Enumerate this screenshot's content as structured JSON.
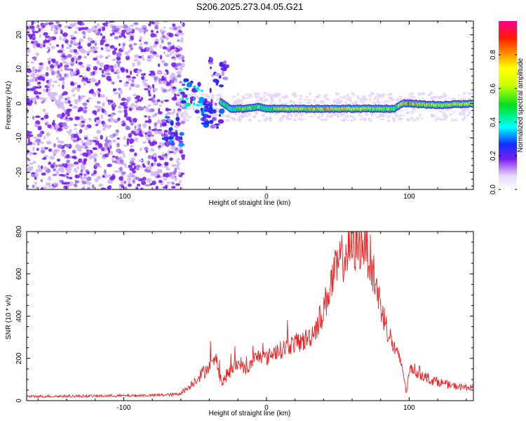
{
  "title": "S206.2025.273.04.05.G21",
  "colors": {
    "noise_dark": "#7a1ff0",
    "noise_light": "#d2b8f8",
    "snr_line": "#ee2222",
    "axis": "#000000"
  },
  "chart_data": [
    {
      "type": "heatmap",
      "title": "S206.2025.273.04.05.G21",
      "xlabel": "Height of straight line (km)",
      "ylabel": "Frequency (Hz)",
      "xlim": [
        -168,
        145
      ],
      "ylim": [
        -25,
        24
      ],
      "xticks": [
        -100,
        0,
        100
      ],
      "yticks": [
        -20,
        -10,
        0,
        10,
        20
      ],
      "colorbar": {
        "label": "Normalized spectral amplitude",
        "range": [
          0,
          1
        ],
        "ticks": [
          0.0,
          0.2,
          0.4,
          0.6,
          0.8
        ]
      },
      "features": {
        "noise_region_x": [
          -168,
          -62
        ],
        "transition_blobs": [
          {
            "x": -54,
            "y": 3,
            "amp": 0.35
          },
          {
            "x": -45,
            "y": 0,
            "amp": 0.3
          },
          {
            "x": -38,
            "y": -3,
            "amp": 0.25
          },
          {
            "x": -34,
            "y": 9,
            "amp": 0.2
          },
          {
            "x": -66,
            "y": -8,
            "amp": 0.25
          }
        ],
        "ridge": {
          "x": [
            -32,
            -25,
            -15,
            -5,
            0,
            10,
            40,
            60,
            90,
            95,
            100,
            120,
            145
          ],
          "f": [
            0.5,
            -1.5,
            -1.5,
            -1.0,
            -1.5,
            -1.5,
            -1.5,
            -1.5,
            -1.5,
            0.0,
            0.0,
            -0.5,
            0.0
          ],
          "amp": [
            0.6,
            0.4,
            0.7,
            0.6,
            0.5,
            0.7,
            0.8,
            0.7,
            0.6,
            0.7,
            0.85,
            0.7,
            0.7
          ]
        }
      }
    },
    {
      "type": "line",
      "xlabel": "Height of straight line (km)",
      "ylabel": "SNR (10 * v/v)",
      "xlim": [
        -168,
        145
      ],
      "ylim": [
        0,
        800
      ],
      "xticks": [
        -100,
        0,
        100
      ],
      "yticks": [
        0,
        200,
        400,
        600,
        800
      ],
      "series": [
        {
          "name": "SNR",
          "x": [
            -168,
            -120,
            -80,
            -62,
            -55,
            -48,
            -42,
            -38,
            -35,
            -33,
            -31,
            -28,
            -22,
            -18,
            -15,
            -12,
            -8,
            -4,
            0,
            5,
            10,
            15,
            20,
            25,
            30,
            35,
            40,
            45,
            50,
            55,
            60,
            65,
            68,
            72,
            75,
            80,
            85,
            90,
            95,
            98,
            101,
            105,
            110,
            115,
            120,
            130,
            145
          ],
          "y": [
            20,
            22,
            25,
            30,
            60,
            110,
            150,
            170,
            200,
            130,
            80,
            120,
            160,
            180,
            140,
            160,
            200,
            215,
            200,
            230,
            240,
            260,
            270,
            280,
            300,
            350,
            430,
            550,
            640,
            690,
            720,
            740,
            760,
            690,
            600,
            450,
            330,
            240,
            170,
            40,
            160,
            140,
            120,
            100,
            90,
            70,
            60
          ]
        }
      ]
    }
  ]
}
